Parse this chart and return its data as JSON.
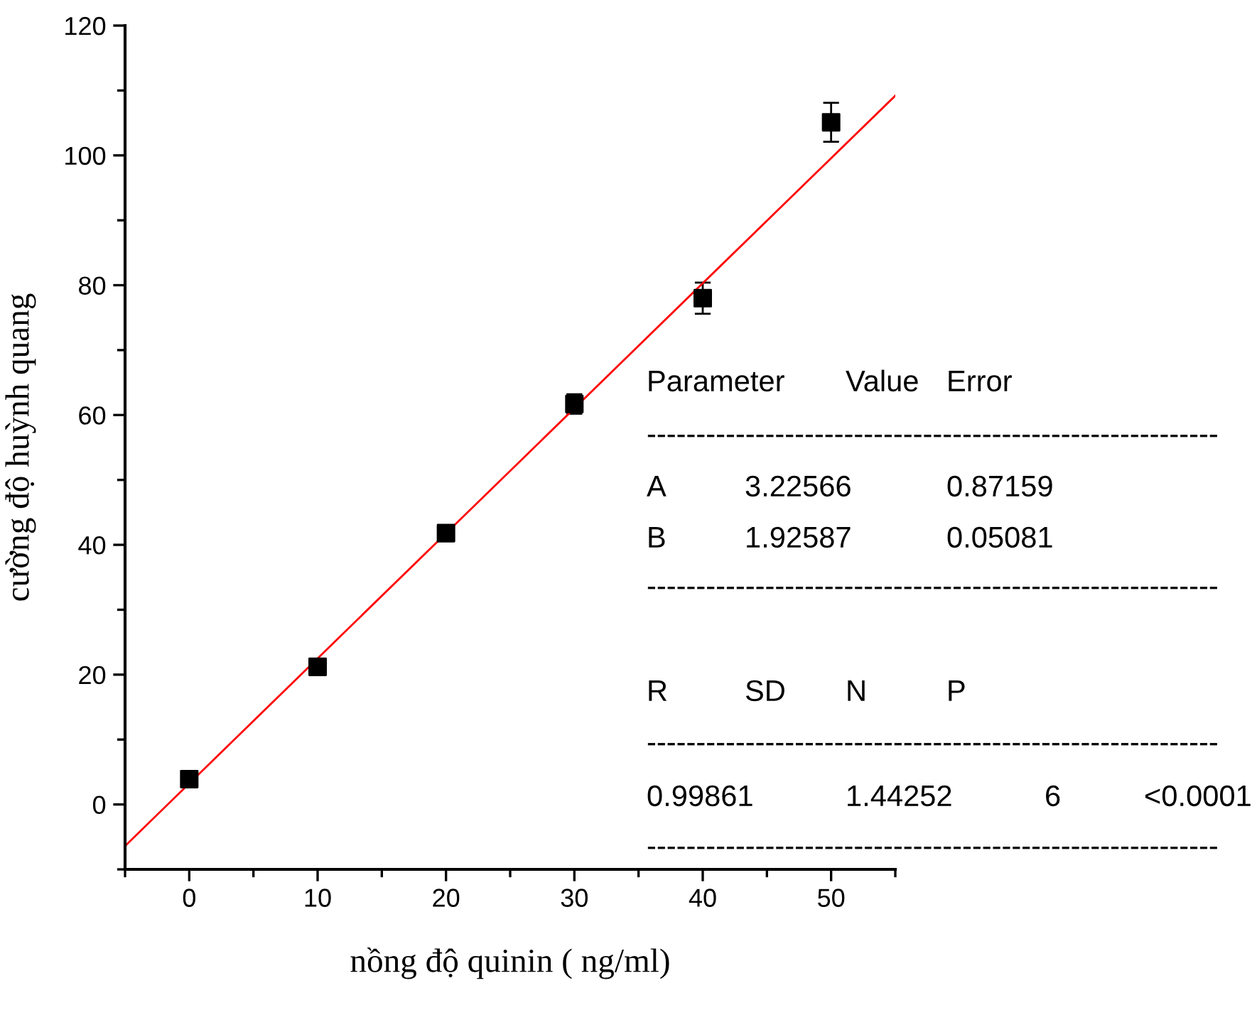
{
  "chart_data": {
    "type": "scatter",
    "xlabel": "nồng độ quinin ( ng/ml)",
    "ylabel": "cường độ huỳnh quang",
    "xlim": [
      -5,
      55
    ],
    "xticks": [
      0,
      10,
      20,
      30,
      40,
      50
    ],
    "ylim": [
      -10,
      120
    ],
    "yticks": [
      0,
      20,
      40,
      60,
      80,
      100,
      120
    ],
    "series": [
      {
        "color": "#000000",
        "marker": "square",
        "x": [
          0,
          10,
          20,
          30,
          40,
          50
        ],
        "values": [
          3.9,
          21.2,
          41.8,
          61.7,
          78,
          105.1
        ],
        "errors": [
          0.6,
          0.6,
          0.6,
          1.5,
          2.4,
          3
        ]
      },
      {
        "type": "line",
        "color": "#ff0000",
        "marker": "none",
        "line_style": "solid",
        "x": [
          -5,
          55
        ],
        "values": [
          -6.4,
          109.2
        ]
      }
    ],
    "annotations": [
      "Parameter",
      "Value",
      "Error",
      "----------------------------------------------------------",
      "A",
      "3.22566",
      "0.87159",
      "B",
      "1.92587",
      "0.05081",
      "----------------------------------------------------------",
      "R",
      "SD",
      "N",
      "P",
      "----------------------------------------------------------",
      "0.99861",
      "1.44252",
      "6",
      "<0.0001",
      "----------------------------------------------------------"
    ],
    "grid": false,
    "legend": false
  }
}
